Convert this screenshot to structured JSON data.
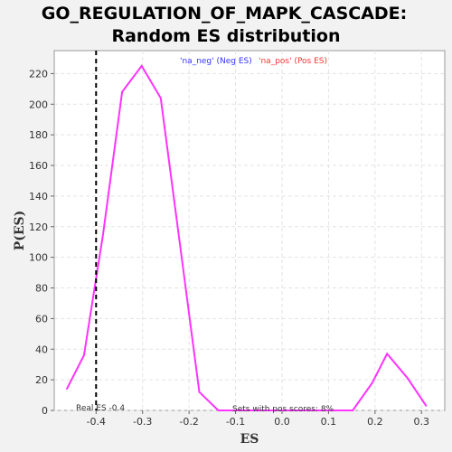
{
  "chart_data": {
    "type": "line",
    "title_line1": "GO_REGULATION_OF_MAPK_CASCADE:",
    "title_line2": "Random ES distribution",
    "xlabel": "ES",
    "ylabel": "P(ES)",
    "xlim": [
      -0.49,
      0.35
    ],
    "ylim": [
      0,
      235
    ],
    "x_ticks": [
      -0.4,
      -0.3,
      -0.2,
      -0.1,
      0.0,
      0.1,
      0.2,
      0.3
    ],
    "x_tick_labels": [
      "-0.4",
      "-0.3",
      "-0.2",
      "-0.1",
      "0.0",
      "0.1",
      "0.2",
      "0.3"
    ],
    "y_ticks": [
      0,
      20,
      40,
      60,
      80,
      100,
      120,
      140,
      160,
      180,
      200,
      220
    ],
    "y_tick_labels": [
      "0",
      "20",
      "40",
      "60",
      "80",
      "100",
      "120",
      "140",
      "160",
      "180",
      "200",
      "220"
    ],
    "grid": true,
    "legend": {
      "neg_label": "'na_neg' (Neg ES)",
      "pos_label": "'na_pos' (Pos ES)",
      "neg_color": "#3333ff",
      "pos_color": "#ff3333",
      "placement": "top-center"
    },
    "series": [
      {
        "color": "#ff33ff",
        "x": [
          -0.463,
          -0.426,
          -0.385,
          -0.344,
          -0.302,
          -0.261,
          -0.219,
          -0.178,
          -0.137,
          -0.095,
          -0.054,
          -0.013,
          0.029,
          0.07,
          0.111,
          0.152,
          0.194,
          0.226,
          0.27,
          0.31
        ],
        "y": [
          14,
          36,
          115,
          208,
          225,
          204,
          107,
          12,
          0,
          0,
          0,
          0,
          0,
          0,
          0,
          0,
          18,
          37,
          21,
          3
        ]
      }
    ],
    "real_es": -0.4,
    "real_es_label": "Real ES -0.4",
    "pos_scores_label": "Sets with pos scores: 8%"
  }
}
